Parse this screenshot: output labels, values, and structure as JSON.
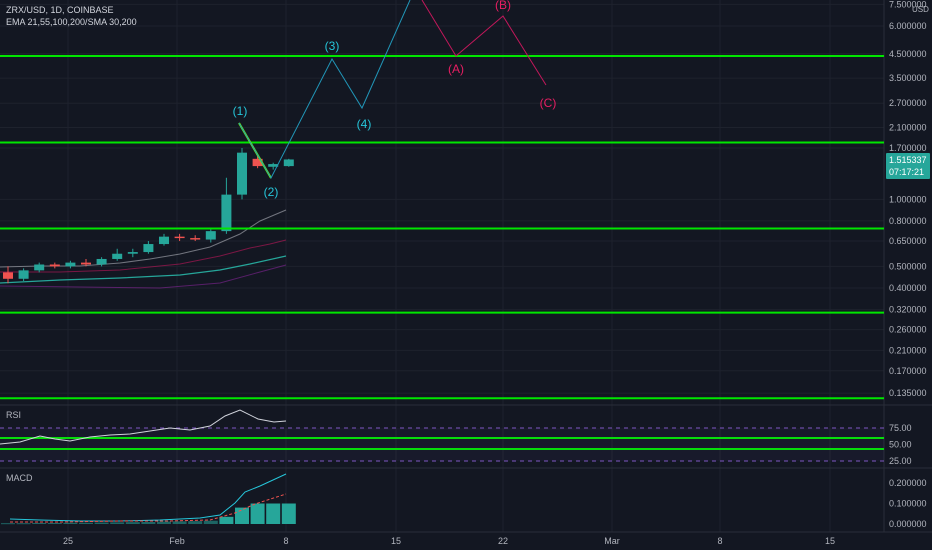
{
  "header": {
    "symbol_line": "ZRX/USD, 1D, COINBASE",
    "indicators_line": "EMA 21,55,100,200/SMA 30,200"
  },
  "price_axis": {
    "currency": "USD",
    "ticks": [
      {
        "label": "7.500000",
        "value": 7.5
      },
      {
        "label": "6.000000",
        "value": 6.0
      },
      {
        "label": "4.500000",
        "value": 4.5
      },
      {
        "label": "3.500000",
        "value": 3.5
      },
      {
        "label": "2.700000",
        "value": 2.7
      },
      {
        "label": "2.100000",
        "value": 2.1
      },
      {
        "label": "1.700000",
        "value": 1.7
      },
      {
        "label": "1.000000",
        "value": 1.0
      },
      {
        "label": "0.800000",
        "value": 0.8
      },
      {
        "label": "0.650000",
        "value": 0.65
      },
      {
        "label": "0.500000",
        "value": 0.5
      },
      {
        "label": "0.400000",
        "value": 0.4
      },
      {
        "label": "0.320000",
        "value": 0.32
      },
      {
        "label": "0.260000",
        "value": 0.26
      },
      {
        "label": "0.210000",
        "value": 0.21
      },
      {
        "label": "0.170000",
        "value": 0.17
      },
      {
        "label": "0.135000",
        "value": 0.135
      }
    ],
    "current_price": "1.515337",
    "countdown": "07:17:21"
  },
  "time_axis": {
    "ticks": [
      "25",
      "Feb",
      "8",
      "15",
      "22",
      "Mar",
      "8",
      "15"
    ]
  },
  "horizontal_levels": [
    4.4,
    1.8,
    0.74,
    0.31,
    0.128
  ],
  "wave_labels": {
    "w1": "(1)",
    "w2": "(2)",
    "w3": "(3)",
    "w4": "(4)",
    "a": "(A)",
    "b": "(B)",
    "c": "(C)"
  },
  "rsi": {
    "label": "RSI",
    "ticks": [
      {
        "label": "75.00",
        "value": 75
      },
      {
        "label": "50.00",
        "value": 50
      },
      {
        "label": "25.00",
        "value": 25
      }
    ]
  },
  "macd": {
    "label": "MACD",
    "ticks": [
      {
        "label": "0.200000",
        "value": 0.2
      },
      {
        "label": "0.100000",
        "value": 0.1
      },
      {
        "label": "0.000000",
        "value": 0.0
      }
    ]
  },
  "colors": {
    "background": "#131722",
    "up": "#26a69a",
    "down": "#ef5350",
    "level": "#00e600",
    "wave_impulse": "#2196b8",
    "wave_corrective": "#c2185b",
    "wave_label_impulse": "#26c6da",
    "wave_label_corrective": "#e91e63"
  }
}
